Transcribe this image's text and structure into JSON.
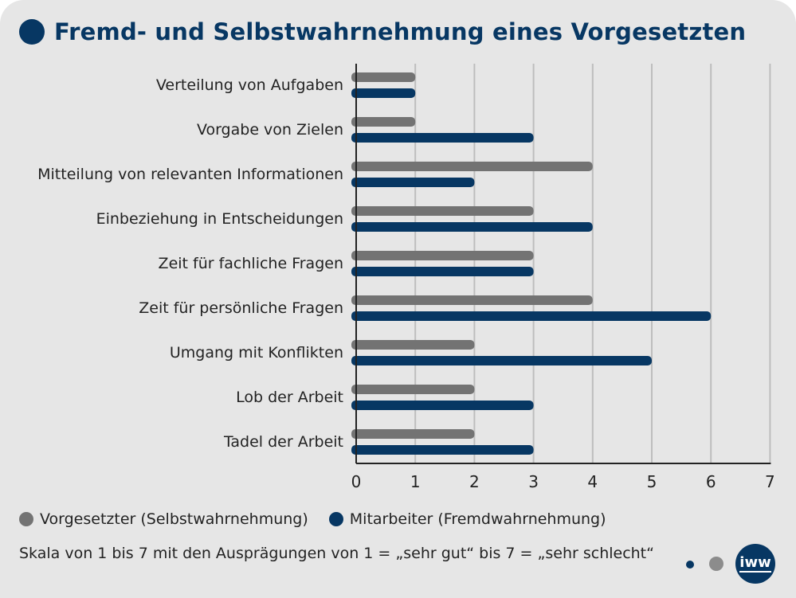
{
  "title": "Fremd- und Selbstwahrnehmung eines Vorgesetzten",
  "colors": {
    "accent": "#073763",
    "grey": "#737373",
    "background": "#e6e6e6"
  },
  "chart_data": {
    "type": "bar",
    "orientation": "horizontal",
    "title": "Fremd- und Selbstwahrnehmung eines Vorgesetzten",
    "xlabel": "",
    "ylabel": "",
    "xlim": [
      0,
      7
    ],
    "xticks": [
      "0",
      "1",
      "2",
      "3",
      "4",
      "5",
      "6",
      "7"
    ],
    "grid": true,
    "legend_position": "bottom-left",
    "categories": [
      "Verteilung von Aufgaben",
      "Vorgabe von Zielen",
      "Mitteilung von relevanten Informationen",
      "Einbeziehung in Entscheidungen",
      "Zeit für fachliche Fragen",
      "Zeit für persönliche Fragen",
      "Umgang mit Konflikten",
      "Lob der Arbeit",
      "Tadel der Arbeit"
    ],
    "series": [
      {
        "name": "Vorgesetzter (Selbstwahrnehmung)",
        "color": "#737373",
        "values": [
          1,
          1,
          4,
          3,
          3,
          4,
          2,
          2,
          2
        ]
      },
      {
        "name": "Mitarbeiter (Fremdwahrnehmung)",
        "color": "#073763",
        "values": [
          1,
          3,
          2,
          4,
          3,
          6,
          5,
          3,
          3
        ]
      }
    ]
  },
  "legend": [
    {
      "label": "Vorgesetzter (Selbstwahrnehmung)",
      "color": "#737373"
    },
    {
      "label": "Mitarbeiter (Fremdwahrnehmung)",
      "color": "#073763"
    }
  ],
  "note": "Skala von 1 bis 7 mit den Ausprägungen von 1 = „sehr gut“ bis 7 = „sehr schlecht“",
  "logo": {
    "text": "iww"
  }
}
